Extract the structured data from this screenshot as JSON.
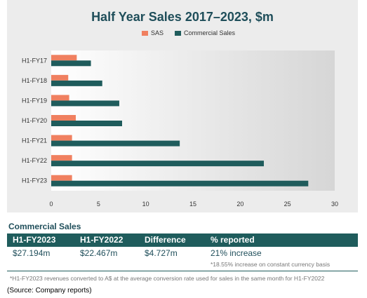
{
  "chart_data": {
    "type": "bar",
    "orientation": "horizontal",
    "title": "Half Year Sales 2017–2023, $m",
    "categories": [
      "H1-FY17",
      "H1-FY18",
      "H1-FY19",
      "H1-FY20",
      "H1-FY21",
      "H1-FY22",
      "H1-FY23"
    ],
    "series": [
      {
        "name": "SAS",
        "color": "#f08060",
        "values": [
          2.7,
          1.8,
          1.9,
          2.6,
          2.2,
          2.2,
          2.2
        ]
      },
      {
        "name": "Commercial Sales",
        "color": "#1f5c5c",
        "values": [
          4.2,
          5.4,
          7.2,
          7.5,
          13.6,
          22.5,
          27.2
        ]
      }
    ],
    "xlim": [
      0,
      30
    ],
    "xticks": [
      "0",
      "5",
      "10",
      "15",
      "20",
      "25",
      "30"
    ],
    "xlabel": "",
    "ylabel": "",
    "legend": "top-center",
    "grid": false
  },
  "table": {
    "title": "Commercial Sales",
    "headers": [
      "H1-FY2023",
      "H1-FY2022",
      "Difference",
      "% reported"
    ],
    "values": [
      "$27.194m",
      "$22.467m",
      "$4.727m",
      "21% increase"
    ],
    "note": "*18.55% increase on constant currency basis"
  },
  "footnote": "*H1-FY2023 revenues converted to A$ at the average conversion rate used for sales in the same month for H1-FY2022",
  "source": "(Source: Company reports)",
  "colors": {
    "accent": "#1f5c5c",
    "title": "#1f4e5a",
    "sas": "#f08060"
  }
}
